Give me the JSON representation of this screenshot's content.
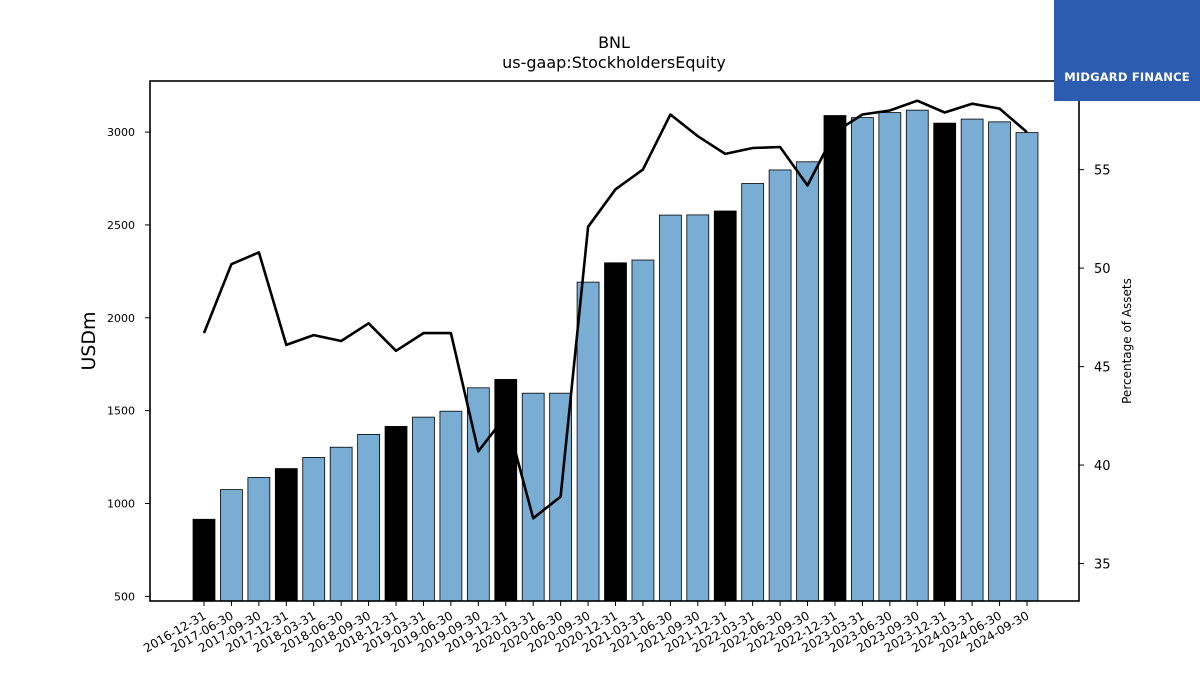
{
  "chart_data": {
    "type": "bar",
    "title": "BNL",
    "subtitle": "us-gaap:StockholdersEquity",
    "ylabel": "USDm",
    "y2label": "Percentage of Assets",
    "ylim": [
      475,
      3275
    ],
    "y2lim": [
      33.1,
      59.5
    ],
    "yticks": [
      500,
      1000,
      1500,
      2000,
      2500,
      3000
    ],
    "y2ticks": [
      35,
      40,
      45,
      50,
      55
    ],
    "categories": [
      "2016-12-31",
      "2017-06-30",
      "2017-09-30",
      "2017-12-31",
      "2018-03-31",
      "2018-06-30",
      "2018-09-30",
      "2018-12-31",
      "2019-03-31",
      "2019-06-30",
      "2019-09-30",
      "2019-12-31",
      "2020-03-31",
      "2020-06-30",
      "2020-09-30",
      "2020-12-31",
      "2021-03-31",
      "2021-06-30",
      "2021-09-30",
      "2021-12-31",
      "2022-03-31",
      "2022-06-30",
      "2022-09-30",
      "2022-12-31",
      "2023-03-31",
      "2023-06-30",
      "2023-09-30",
      "2023-12-31",
      "2024-03-31",
      "2024-06-30",
      "2024-09-30"
    ],
    "series": [
      {
        "values": [
          915,
          1075,
          1140,
          1188,
          1248,
          1303,
          1372,
          1415,
          1465,
          1497,
          1623,
          1668,
          1594,
          1594,
          2192,
          2296,
          2311,
          2553,
          2554,
          2575,
          2723,
          2796,
          2840,
          3089,
          3078,
          3105,
          3118,
          3048,
          3070,
          3055,
          2997
        ],
        "highlight": [
          true,
          false,
          false,
          true,
          false,
          false,
          false,
          true,
          false,
          false,
          false,
          true,
          false,
          false,
          false,
          true,
          false,
          false,
          false,
          true,
          false,
          false,
          false,
          true,
          false,
          false,
          false,
          true,
          false,
          false,
          false
        ],
        "color": "#7aadd4",
        "highlight_color": "#000000"
      },
      {
        "type": "line",
        "axis": "right",
        "values": [
          46.7,
          50.2,
          50.8,
          46.1,
          46.6,
          46.3,
          47.2,
          45.8,
          46.7,
          46.7,
          40.7,
          42.5,
          37.3,
          38.4,
          52.1,
          54.0,
          55.0,
          57.8,
          56.7,
          55.8,
          56.1,
          56.15,
          54.2,
          56.9,
          57.8,
          58.0,
          58.5,
          57.9,
          58.35,
          58.1,
          56.9
        ],
        "color": "#000000"
      }
    ]
  },
  "logo": {
    "text": "MIDGARD FINANCE",
    "background": "#2b5caf"
  }
}
